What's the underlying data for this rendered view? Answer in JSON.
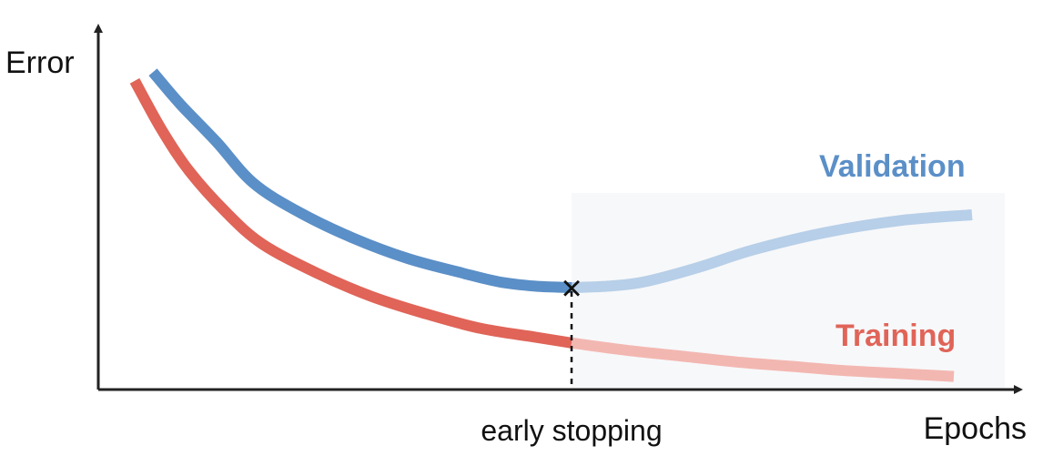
{
  "chart_data": {
    "type": "line",
    "title": "",
    "xlabel": "Epochs",
    "ylabel": "Error",
    "grid": false,
    "xlim": [
      0,
      100
    ],
    "ylim": [
      0,
      100
    ],
    "series": [
      {
        "name": "Validation",
        "color": "#5b8fc7",
        "faded_color": "#b7cfe8",
        "x": [
          6,
          9,
          13,
          17,
          22,
          28,
          34,
          40,
          44,
          48,
          52,
          56,
          60,
          66,
          72,
          80,
          88,
          96
        ],
        "y": [
          109,
          98,
          85,
          71,
          61,
          52,
          45,
          40,
          37,
          35.5,
          35,
          35.5,
          37,
          42,
          48,
          54,
          58,
          60
        ]
      },
      {
        "name": "Training",
        "color": "#e06458",
        "faded_color": "#f3b7b1",
        "x": [
          4,
          7,
          10,
          14,
          18,
          24,
          30,
          36,
          42,
          48,
          52,
          58,
          64,
          70,
          76,
          82,
          88,
          94
        ],
        "y": [
          106,
          89,
          75,
          61,
          50,
          40,
          32,
          26,
          21,
          18,
          16,
          13.5,
          11.5,
          9.5,
          8,
          6.5,
          5.5,
          4.5
        ]
      }
    ],
    "annotations": [
      {
        "text": "early stopping",
        "x": 52,
        "marker": "×"
      }
    ]
  }
}
